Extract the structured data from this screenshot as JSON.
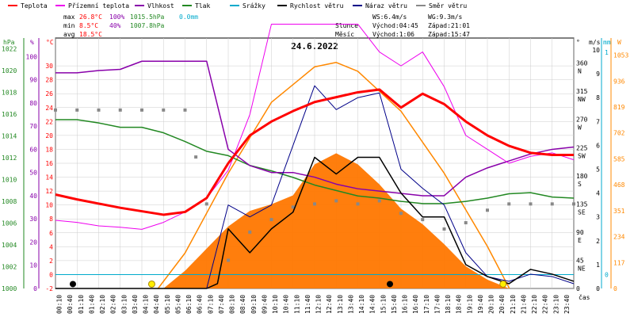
{
  "chart_data": {
    "type": "line",
    "title": "24.6.2022",
    "colors": {
      "teplota": "#ff0000",
      "prizemni": "#ee00ee",
      "vlhkost": "#8800aa",
      "tlak": "#228822",
      "srazky": "#00aacc",
      "rychlost": "#000000",
      "naraz": "#000088",
      "smer": "#888888",
      "sun": "#ff8800",
      "fill": "#ff7700",
      "grid": "#cccccc"
    },
    "legend": [
      {
        "key": "teplota",
        "label": "Teplota"
      },
      {
        "key": "prizemni",
        "label": "Přízemní teplota"
      },
      {
        "key": "vlhkost",
        "label": "Vlhkost"
      },
      {
        "key": "tlak",
        "label": "Tlak"
      },
      {
        "key": "srazky",
        "label": "Srážky"
      },
      {
        "key": "rychlost",
        "label": "Rychlost větru"
      },
      {
        "key": "naraz",
        "label": "Náraz větru"
      },
      {
        "key": "smer",
        "label": "Směr větru"
      }
    ],
    "stats": {
      "max_label": "max",
      "max_t": "26.8°C",
      "max_h": "100%",
      "max_p": "1015.5hPa",
      "max_r": "0.0mm",
      "min_label": "min",
      "min_t": "8.5°C",
      "min_h": "40%",
      "min_p": "1007.8hPa",
      "avg_label": "avg",
      "avg_t": "18.5°C",
      "ws": "WS:6.4m/s",
      "wg": "WG:9.3m/s",
      "sun_label": "Slunce",
      "sunrise": "Východ:04:45",
      "sunset": "Západ:21:01",
      "moon_label": "Měsíc",
      "moonrise": "Východ:1:06",
      "moonset": "Západ:15:47"
    },
    "axes": {
      "hpa_unit": "hPa",
      "pct_unit": "%",
      "c_unit": "°C",
      "deg_unit": "°",
      "ms_unit": "m/s",
      "mm_unit": "mm",
      "w_unit": "W",
      "x_unit": "čas",
      "hpa_ticks": [
        "1022",
        "1020",
        "1018",
        "1016",
        "1014",
        "1012",
        "1010",
        "1008",
        "1006",
        "1004",
        "1002",
        "1000"
      ],
      "pct_ticks": [
        "100",
        "90",
        "80",
        "70",
        "60",
        "50",
        "40",
        "30",
        "20",
        "10",
        "0"
      ],
      "c_ticks": [
        "30",
        "28",
        "26",
        "24",
        "22",
        "20",
        "18",
        "16",
        "14",
        "12",
        "10",
        "8",
        "6",
        "4",
        "2",
        "0",
        "-2"
      ],
      "dir_ticks": [
        "360",
        "315",
        "270",
        "225",
        "180",
        "135",
        "90",
        "45",
        "0"
      ],
      "dir_names": [
        "N",
        "NW",
        "W",
        "SW",
        "S",
        "SE",
        "E",
        "NE",
        ""
      ],
      "ms_ticks": [
        "10",
        "9",
        "8",
        "7",
        "6",
        "5",
        "4",
        "3",
        "2",
        "1",
        "0"
      ],
      "mm_ticks": [
        "1",
        "0"
      ],
      "w_ticks": [
        "1053",
        "936",
        "819",
        "702",
        "585",
        "468",
        "351",
        "234",
        "117",
        "0"
      ],
      "x_ticks": [
        "00:10",
        "00:40",
        "01:10",
        "01:40",
        "02:10",
        "02:40",
        "03:10",
        "03:40",
        "04:10",
        "04:40",
        "05:10",
        "05:40",
        "06:10",
        "06:40",
        "07:10",
        "07:40",
        "08:10",
        "08:40",
        "09:10",
        "09:40",
        "10:10",
        "10:40",
        "11:10",
        "11:40",
        "12:10",
        "12:40",
        "13:10",
        "13:40",
        "14:10",
        "14:40",
        "15:10",
        "15:40",
        "16:10",
        "16:40",
        "17:10",
        "17:40",
        "18:10",
        "18:40",
        "19:10",
        "19:40",
        "20:10",
        "20:40",
        "21:10",
        "21:40",
        "22:10",
        "22:40",
        "23:10",
        "23:40"
      ]
    },
    "temperature": [
      [
        0,
        11.5
      ],
      [
        1,
        10.8
      ],
      [
        2,
        10.2
      ],
      [
        3,
        9.6
      ],
      [
        4,
        9.1
      ],
      [
        5,
        8.6
      ],
      [
        6,
        9
      ],
      [
        7,
        11
      ],
      [
        8,
        16
      ],
      [
        9,
        20
      ],
      [
        10,
        22
      ],
      [
        11,
        23.5
      ],
      [
        12,
        24.8
      ],
      [
        13,
        25.5
      ],
      [
        14,
        26.2
      ],
      [
        15,
        26.6
      ],
      [
        16,
        24
      ],
      [
        17,
        26
      ],
      [
        18,
        24.5
      ],
      [
        19,
        22
      ],
      [
        20,
        20
      ],
      [
        21,
        18.5
      ],
      [
        22,
        17.5
      ],
      [
        23,
        17.2
      ],
      [
        24,
        17.2
      ]
    ],
    "ground_temperature": [
      [
        0,
        7.8
      ],
      [
        1,
        7.5
      ],
      [
        2,
        7
      ],
      [
        3,
        6.8
      ],
      [
        4,
        6.5
      ],
      [
        5,
        7.5
      ],
      [
        6,
        9
      ],
      [
        7,
        11
      ],
      [
        8,
        15
      ],
      [
        9,
        23
      ],
      [
        10,
        36
      ],
      [
        11,
        36
      ],
      [
        12,
        36
      ],
      [
        13,
        36
      ],
      [
        14,
        36
      ],
      [
        15,
        32
      ],
      [
        16,
        30
      ],
      [
        17,
        32
      ],
      [
        18,
        27
      ],
      [
        19,
        20
      ],
      [
        20,
        18
      ],
      [
        21,
        16
      ],
      [
        22,
        17
      ],
      [
        23,
        17.5
      ],
      [
        24,
        16.5
      ]
    ],
    "humidity": [
      [
        0,
        93
      ],
      [
        1,
        93
      ],
      [
        2,
        94
      ],
      [
        3,
        94.5
      ],
      [
        4,
        98
      ],
      [
        5,
        98
      ],
      [
        6,
        98
      ],
      [
        7,
        98
      ],
      [
        8,
        60
      ],
      [
        9,
        53
      ],
      [
        10,
        50
      ],
      [
        11,
        50
      ],
      [
        12,
        48
      ],
      [
        13,
        45
      ],
      [
        14,
        43
      ],
      [
        15,
        42
      ],
      [
        16,
        41
      ],
      [
        17,
        40
      ],
      [
        18,
        40
      ],
      [
        19,
        48
      ],
      [
        20,
        52
      ],
      [
        21,
        55
      ],
      [
        22,
        58
      ],
      [
        23,
        60
      ],
      [
        24,
        61
      ]
    ],
    "pressure": [
      [
        0,
        1015.5
      ],
      [
        1,
        1015.5
      ],
      [
        2,
        1015.2
      ],
      [
        3,
        1014.8
      ],
      [
        4,
        1014.8
      ],
      [
        5,
        1014.3
      ],
      [
        6,
        1013.5
      ],
      [
        7,
        1012.6
      ],
      [
        8,
        1012.2
      ],
      [
        9,
        1011.3
      ],
      [
        10,
        1010.8
      ],
      [
        11,
        1010.2
      ],
      [
        12,
        1009.5
      ],
      [
        13,
        1009
      ],
      [
        14,
        1008.5
      ],
      [
        15,
        1008.3
      ],
      [
        16,
        1008
      ],
      [
        17,
        1007.8
      ],
      [
        18,
        1007.8
      ],
      [
        19,
        1008
      ],
      [
        20,
        1008.3
      ],
      [
        21,
        1008.7
      ],
      [
        22,
        1008.8
      ],
      [
        23,
        1008.4
      ],
      [
        24,
        1008.3
      ]
    ],
    "rain": [
      [
        0,
        0
      ],
      [
        24,
        0
      ]
    ],
    "wind_speed": [
      [
        0,
        0
      ],
      [
        7,
        0
      ],
      [
        7.5,
        0.2
      ],
      [
        8,
        2.5
      ],
      [
        9,
        1.5
      ],
      [
        10,
        2.5
      ],
      [
        11,
        3.2
      ],
      [
        12,
        5.5
      ],
      [
        13,
        4.8
      ],
      [
        14,
        5.5
      ],
      [
        15,
        5.5
      ],
      [
        16,
        4
      ],
      [
        17,
        3
      ],
      [
        18,
        3
      ],
      [
        19,
        1
      ],
      [
        20,
        0.5
      ],
      [
        21,
        0.2
      ],
      [
        22,
        0.8
      ],
      [
        23,
        0.6
      ],
      [
        24,
        0.3
      ]
    ],
    "wind_gust": [
      [
        0,
        0
      ],
      [
        7,
        0
      ],
      [
        8,
        3.5
      ],
      [
        9,
        3
      ],
      [
        10,
        3.5
      ],
      [
        11,
        6
      ],
      [
        12,
        8.5
      ],
      [
        13,
        7.5
      ],
      [
        14,
        8
      ],
      [
        15,
        8.2
      ],
      [
        16,
        5
      ],
      [
        17,
        4.2
      ],
      [
        18,
        3.5
      ],
      [
        19,
        1.5
      ],
      [
        20,
        0.5
      ],
      [
        21,
        0.3
      ],
      [
        22,
        0.6
      ],
      [
        23,
        0.5
      ],
      [
        24,
        0.2
      ]
    ],
    "wind_direction": [
      [
        0,
        285
      ],
      [
        1,
        285
      ],
      [
        2,
        285
      ],
      [
        3,
        285
      ],
      [
        4,
        285
      ],
      [
        5,
        285
      ],
      [
        6,
        285
      ],
      [
        6.5,
        210
      ],
      [
        7,
        135
      ],
      [
        8,
        45
      ],
      [
        9,
        90
      ],
      [
        10,
        110
      ],
      [
        11,
        130
      ],
      [
        12,
        135
      ],
      [
        13,
        140
      ],
      [
        14,
        135
      ],
      [
        15,
        140
      ],
      [
        16,
        120
      ],
      [
        17,
        110
      ],
      [
        18,
        95
      ],
      [
        19,
        105
      ],
      [
        20,
        125
      ],
      [
        21,
        135
      ],
      [
        22,
        135
      ],
      [
        23,
        135
      ],
      [
        24,
        135
      ]
    ],
    "solar": [
      [
        0,
        0
      ],
      [
        5,
        0
      ],
      [
        6,
        80
      ],
      [
        7,
        180
      ],
      [
        8,
        280
      ],
      [
        9,
        350
      ],
      [
        10,
        380
      ],
      [
        11,
        420
      ],
      [
        12,
        560
      ],
      [
        13,
        610
      ],
      [
        14,
        560
      ],
      [
        15,
        470
      ],
      [
        16,
        360
      ],
      [
        17,
        290
      ],
      [
        18,
        200
      ],
      [
        19,
        100
      ],
      [
        20,
        40
      ],
      [
        21,
        0
      ],
      [
        24,
        0
      ]
    ],
    "solar_theoretical": [
      [
        4.75,
        0
      ],
      [
        6,
        160
      ],
      [
        8,
        520
      ],
      [
        10,
        840
      ],
      [
        12,
        1000
      ],
      [
        13,
        1020
      ],
      [
        14,
        980
      ],
      [
        16,
        800
      ],
      [
        18,
        520
      ],
      [
        20,
        190
      ],
      [
        21.02,
        0
      ]
    ],
    "sun_rise_time": 4.75,
    "sun_set_time": 21.02,
    "moon_rise_time": 1.1,
    "moon_set_time": 15.78
  }
}
